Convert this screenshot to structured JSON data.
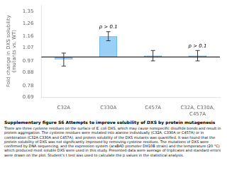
{
  "chart_data": {
    "type": "bar",
    "title": "Supplementary figure S6 Attempts to improve solubility of DXS by protein mutagenesis",
    "caption": "There are three cysteine residues on the surface of E. coli DXS, which may cause nonspecific disulfide bonds and result in protein aggregation. The cysteine residues were mutated into alanine individually (C32A, C330A or C457A) or in combination (C32A C330A and C457A), and protein solubility of the DXS mutants was quantified. It was found that the protein solubility of DXS was not significantly improved by removing cysteine residues. The mutations of DXS were confirmed by DNA sequencing, and the expression system (araBAD promoter DH10B strain) and the temperature (20 °C) which produced most soluble DXS were used in this study. Presented data were average of triplicates and standard errors were drawn on the plot. Student’s t test was used to calculate the p values in the statistical analysis.",
    "categories": [
      "C32A",
      "C330A",
      "C457A",
      "C32A, C330A,\nC457A"
    ],
    "values": [
      0.98,
      1.16,
      1.01,
      1.01
    ],
    "errors": [
      0.05,
      0.035,
      0.04,
      0.04
    ],
    "baseline": 1.0,
    "annotations": [
      null,
      "p > 0.1",
      null,
      "p > 0.1"
    ],
    "ylabel": "Fold change in DXS solubility\n(mutants vs. WT)",
    "ylim": [
      0.69,
      1.4
    ],
    "yticks": [
      0.69,
      0.78,
      0.88,
      0.97,
      1.07,
      1.16,
      1.26,
      1.35
    ],
    "grid": false
  }
}
